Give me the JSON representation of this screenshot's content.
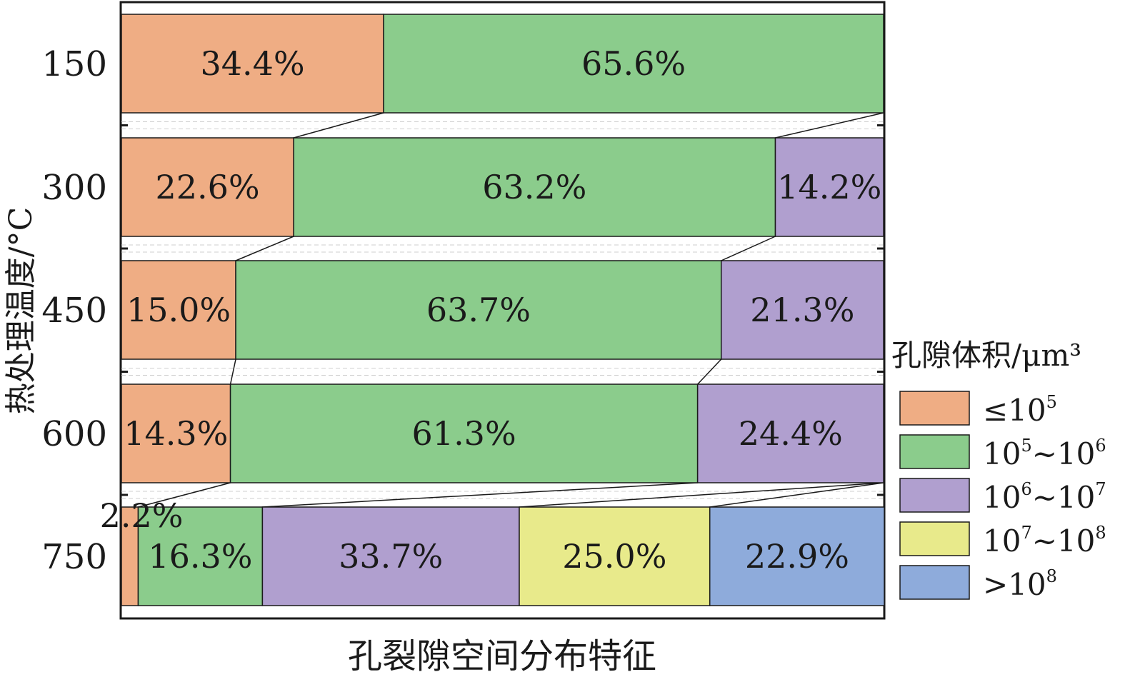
{
  "chart_data": {
    "type": "bar",
    "stacked": "100%",
    "orientation": "horizontal",
    "xlabel": "孔裂隙空间分布特征",
    "ylabel": "热处理温度/°C",
    "categories": [
      "150",
      "300",
      "450",
      "600",
      "750"
    ],
    "series": [
      {
        "name": "≤10⁵",
        "color": "#efad84",
        "values": [
          34.4,
          22.6,
          15.0,
          14.3,
          2.2
        ]
      },
      {
        "name": "10⁵~10⁶",
        "color": "#8bcc8c",
        "values": [
          65.6,
          63.2,
          63.7,
          61.3,
          16.3
        ]
      },
      {
        "name": "10⁶~10⁷",
        "color": "#b09fcf",
        "values": [
          0,
          14.2,
          21.3,
          24.4,
          33.7
        ]
      },
      {
        "name": "10⁷~10⁸",
        "color": "#e8ea8b",
        "values": [
          0,
          0,
          0,
          0,
          25.0
        ]
      },
      {
        "name": ">10⁸",
        "color": "#8eabdb",
        "values": [
          0,
          0,
          0,
          0,
          22.9
        ]
      }
    ],
    "data_labels": [
      [
        "34.4%",
        "65.6%",
        "",
        "",
        ""
      ],
      [
        "22.6%",
        "63.2%",
        "14.2%",
        "",
        ""
      ],
      [
        "15.0%",
        "63.7%",
        "21.3%",
        "",
        ""
      ],
      [
        "14.3%",
        "61.3%",
        "24.4%",
        "",
        ""
      ],
      [
        "2.2%",
        "16.3%",
        "33.7%",
        "25.0%",
        "22.9%"
      ]
    ],
    "xlim": [
      0,
      100
    ],
    "connector_lines": true,
    "legend": {
      "title": "孔隙体积/μm³",
      "placement": "right",
      "entries": [
        {
          "base": "≤10",
          "sup1": "5",
          "mid": "",
          "sup2": ""
        },
        {
          "base": "10",
          "sup1": "5",
          "mid": "~10",
          "sup2": "6"
        },
        {
          "base": "10",
          "sup1": "6",
          "mid": "~10",
          "sup2": "7"
        },
        {
          "base": "10",
          "sup1": "7",
          "mid": "~10",
          "sup2": "8"
        },
        {
          "base": ">10",
          "sup1": "8",
          "mid": "",
          "sup2": ""
        }
      ]
    }
  }
}
